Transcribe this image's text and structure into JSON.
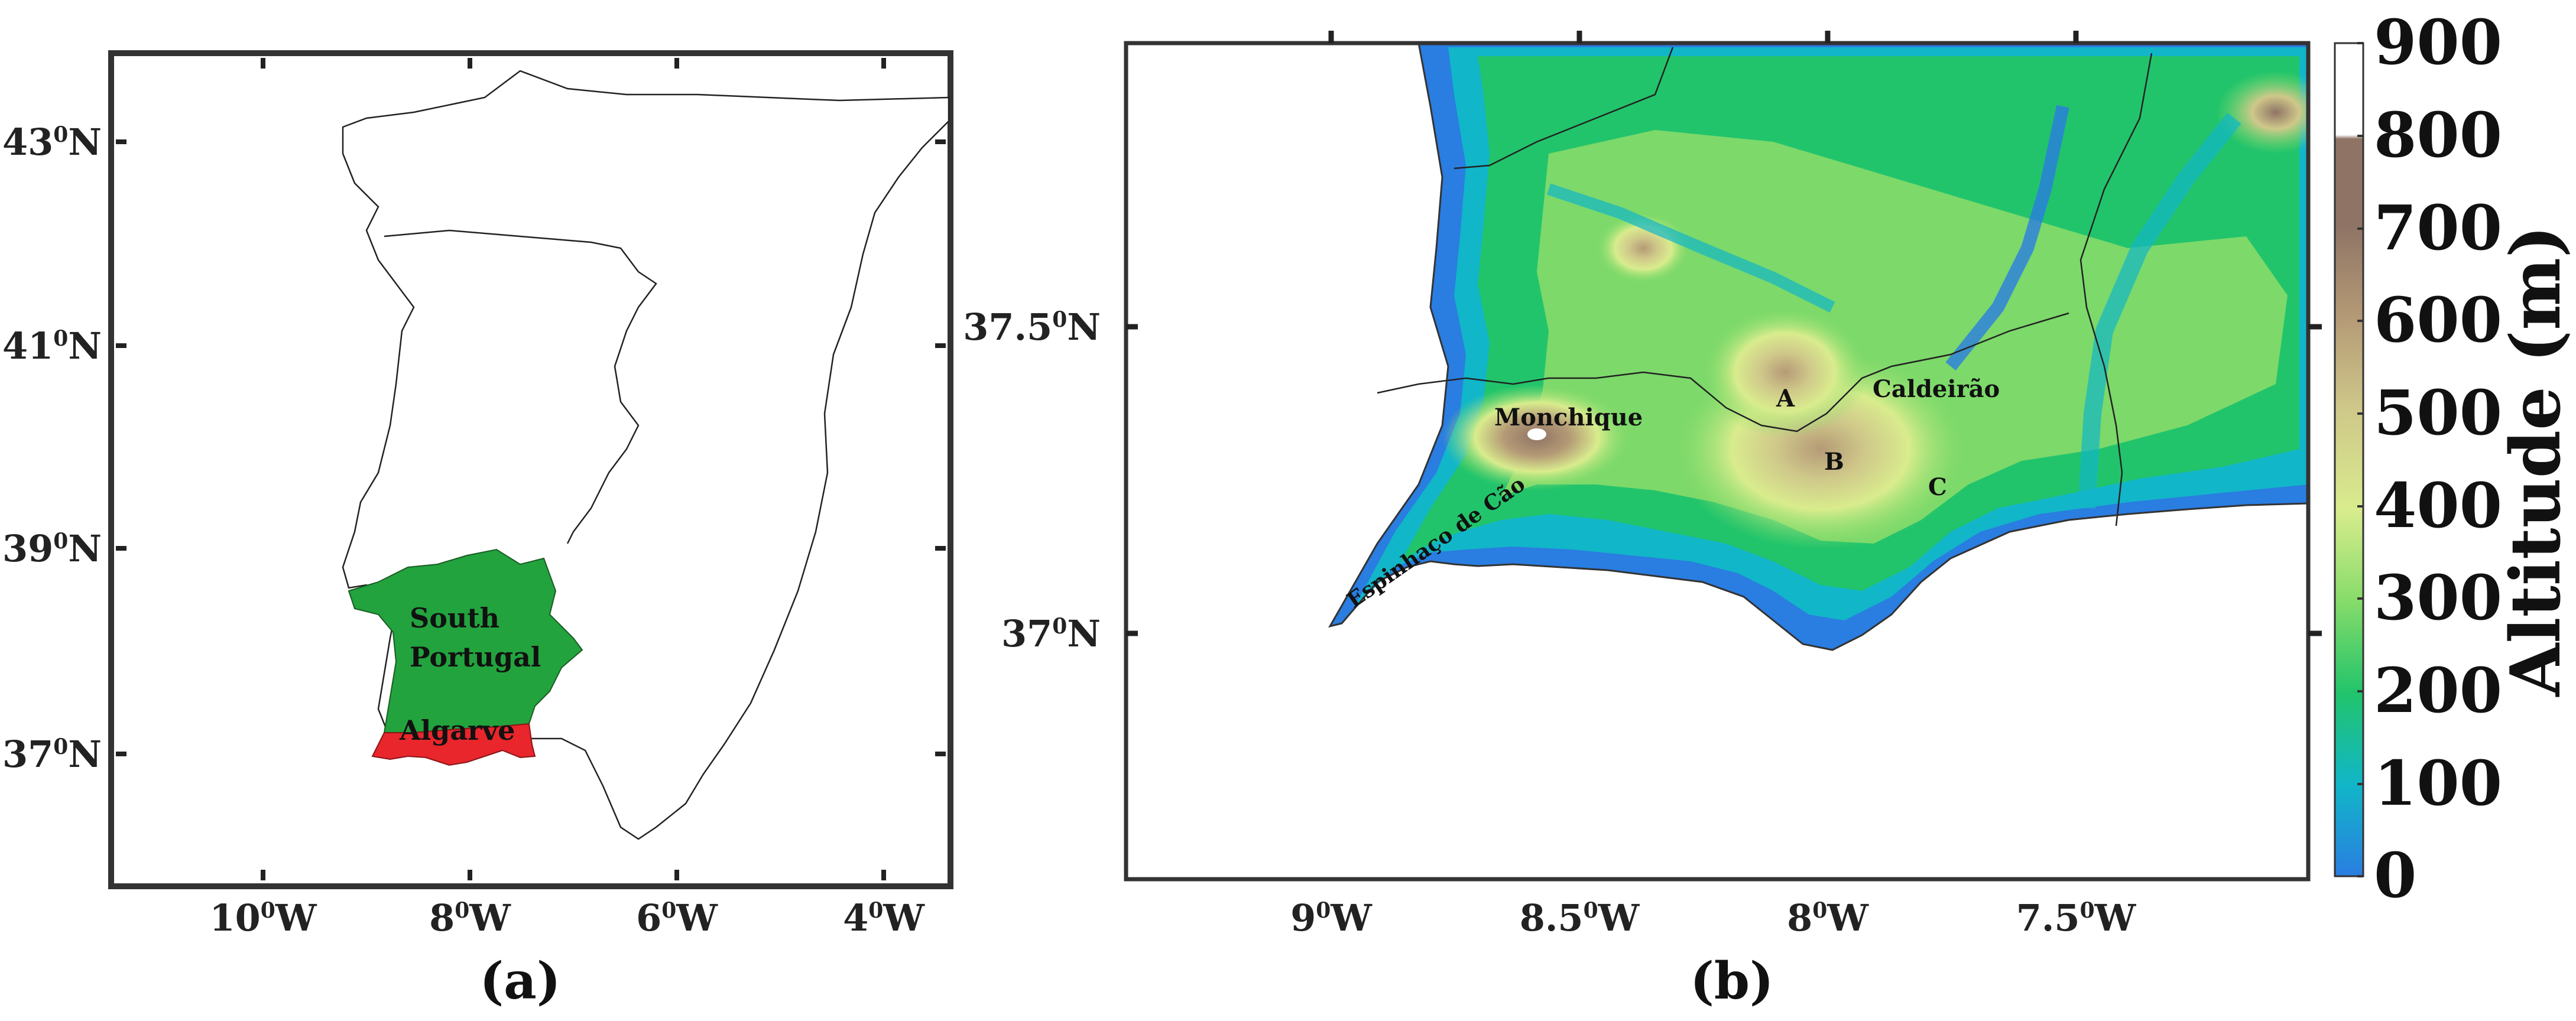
{
  "panel_a": {
    "label": "(a)",
    "x_ticks": [
      {
        "deg": "10",
        "hem": "W"
      },
      {
        "deg": "8",
        "hem": "W"
      },
      {
        "deg": "6",
        "hem": "W"
      },
      {
        "deg": "4",
        "hem": "W"
      }
    ],
    "y_ticks": [
      {
        "deg": "43",
        "hem": "N"
      },
      {
        "deg": "41",
        "hem": "N"
      },
      {
        "deg": "39",
        "hem": "N"
      },
      {
        "deg": "37",
        "hem": "N"
      }
    ],
    "regions": {
      "south_portugal_line1": "South",
      "south_portugal_line2": "Portugal",
      "algarve": "Algarve"
    },
    "colors": {
      "south_portugal": "#22a33e",
      "algarve": "#e8262b"
    }
  },
  "panel_b": {
    "label": "(b)",
    "x_ticks": [
      {
        "deg": "9",
        "hem": "W"
      },
      {
        "deg": "8.5",
        "hem": "W"
      },
      {
        "deg": "8",
        "hem": "W"
      },
      {
        "deg": "7.5",
        "hem": "W"
      }
    ],
    "y_ticks": [
      {
        "deg": "37.5",
        "hem": "N"
      },
      {
        "deg": "37",
        "hem": "N"
      }
    ],
    "places": {
      "monchique": "Monchique",
      "caldeirao": "Caldeirão",
      "espinhaco": "Espinhaço de Cão",
      "a": "A",
      "b": "B",
      "c": "C"
    }
  },
  "colorbar": {
    "title": "Altitude (m)",
    "ticks": [
      "900",
      "800",
      "700",
      "600",
      "500",
      "400",
      "300",
      "200",
      "100",
      "0"
    ],
    "stops": [
      "#2a7de1",
      "#11b6c8",
      "#22c46b",
      "#86dc6a",
      "#d9ec8d",
      "#cfc88a",
      "#b59a76",
      "#8f7466",
      "#ffffff"
    ]
  }
}
